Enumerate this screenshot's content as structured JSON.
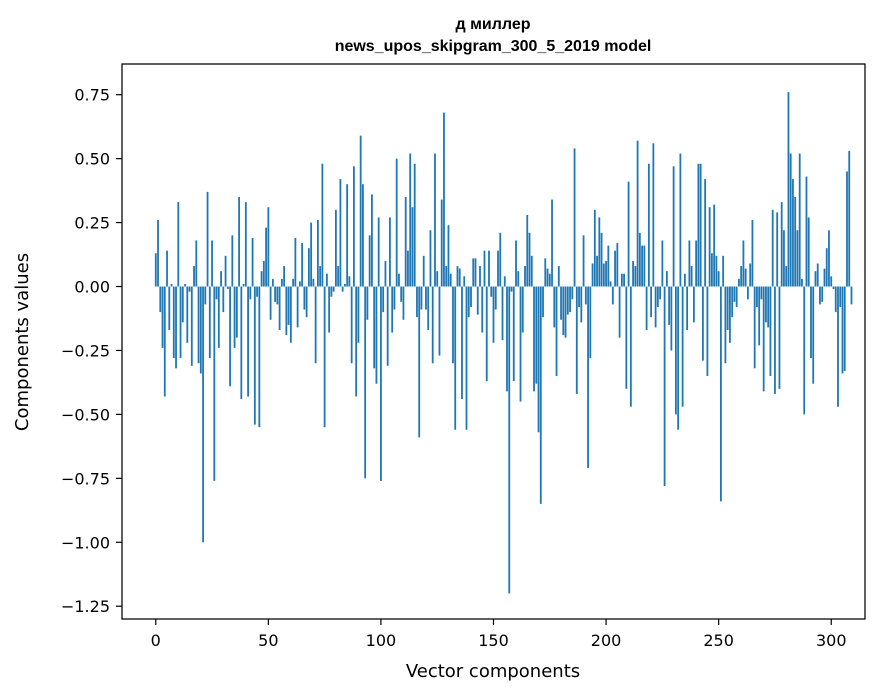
{
  "chart_data": {
    "type": "bar",
    "title": "д миллер",
    "subtitle": "news_upos_skipgram_300_5_2019 model",
    "xlabel": "Vector components",
    "ylabel": "Components values",
    "xlim": [
      -15,
      315
    ],
    "ylim": [
      -1.3,
      0.87
    ],
    "xticks": [
      0,
      50,
      100,
      150,
      200,
      250,
      300
    ],
    "yticks": [
      -1.25,
      -1.0,
      -0.75,
      -0.5,
      -0.25,
      0.0,
      0.25,
      0.5,
      0.75
    ],
    "ytick_labels": [
      "−1.25",
      "−1.00",
      "−0.75",
      "−0.50",
      "−0.25",
      "0.00",
      "0.25",
      "0.50",
      "0.75"
    ],
    "bar_color": "#1f77b4",
    "grid": false,
    "values": [
      0.13,
      0.26,
      -0.1,
      -0.24,
      -0.43,
      0.14,
      -0.17,
      0.01,
      -0.28,
      -0.32,
      0.33,
      -0.28,
      -0.14,
      0.01,
      -0.22,
      -0.02,
      -0.31,
      0.08,
      0.18,
      -0.3,
      -0.34,
      -1.0,
      -0.07,
      0.37,
      -0.28,
      0.18,
      -0.76,
      -0.05,
      -0.24,
      0.06,
      -0.1,
      0.12,
      -0.01,
      -0.39,
      0.2,
      -0.24,
      -0.2,
      0.35,
      -0.44,
      0.01,
      0.33,
      -0.43,
      -0.05,
      0.19,
      -0.54,
      -0.04,
      -0.55,
      0.06,
      0.1,
      0.23,
      0.31,
      -0.13,
      0.03,
      -0.06,
      -0.07,
      -0.17,
      0.03,
      0.08,
      -0.19,
      -0.15,
      -0.22,
      0.03,
      0.19,
      -0.16,
      0.02,
      0.17,
      -0.09,
      -0.12,
      0.15,
      0.25,
      0.03,
      -0.3,
      0.26,
      0.08,
      0.48,
      -0.55,
      0.05,
      -0.18,
      -0.04,
      -0.02,
      0.3,
      0.08,
      0.42,
      -0.02,
      0.01,
      0.4,
      0.04,
      -0.3,
      0.47,
      -0.43,
      -0.22,
      0.59,
      0.4,
      -0.75,
      -0.13,
      0.2,
      0.36,
      -0.32,
      -0.38,
      0.27,
      -0.76,
      -0.1,
      0.1,
      -0.31,
      0.27,
      -0.18,
      -0.09,
      0.5,
      0.05,
      -0.06,
      -0.13,
      0.35,
      0.14,
      0.52,
      0.31,
      0.48,
      -0.12,
      -0.59,
      -0.09,
      0.12,
      -0.09,
      -0.17,
      0.22,
      -0.3,
      0.52,
      0.06,
      -0.27,
      0.34,
      0.68,
      0.08,
      0.24,
      0.05,
      -0.3,
      -0.56,
      0.08,
      0.07,
      -0.44,
      0.04,
      -0.56,
      -0.12,
      -0.08,
      0.11,
      0.11,
      -0.11,
      0.08,
      -0.18,
      0.14,
      -0.37,
      0.14,
      -0.04,
      -0.22,
      -0.09,
      0.14,
      0.21,
      -0.21,
      0.04,
      -0.41,
      -1.2,
      -0.02,
      -0.37,
      0.18,
      0.06,
      -0.45,
      -0.18,
      0.08,
      0.28,
      0.21,
      0.12,
      -0.41,
      -0.38,
      -0.57,
      -0.85,
      -0.12,
      0.11,
      0.07,
      0.05,
      0.34,
      -0.16,
      -0.35,
      0.08,
      -0.13,
      -0.19,
      -0.2,
      -0.11,
      -0.1,
      -0.05,
      0.54,
      -0.42,
      -0.08,
      -0.14,
      0.2,
      -0.07,
      -0.71,
      -0.28,
      0.09,
      0.3,
      0.12,
      0.27,
      0.21,
      0.09,
      0.1,
      0.16,
      0.02,
      -0.07,
      0.14,
      0.17,
      -0.2,
      0.05,
      0.05,
      -0.4,
      0.41,
      -0.47,
      0.1,
      0.08,
      0.57,
      0.21,
      0.16,
      0.16,
      -0.17,
      0.48,
      -0.12,
      0.56,
      -0.16,
      -0.08,
      -0.05,
      0.18,
      -0.78,
      0.06,
      -0.15,
      -0.25,
      0.47,
      -0.5,
      -0.56,
      0.52,
      -0.47,
      0.05,
      -0.17,
      0.18,
      0.08,
      -0.14,
      0.18,
      0.48,
      0.48,
      -0.29,
      0.42,
      -0.35,
      0.31,
      0.13,
      0.32,
      0.12,
      0.06,
      -0.84,
      0.12,
      -0.3,
      -0.17,
      -0.22,
      -0.12,
      -0.06,
      -0.08,
      0.03,
      0.08,
      0.18,
      0.07,
      -0.05,
      0.09,
      0.26,
      -0.32,
      -0.08,
      -0.23,
      -0.05,
      -0.41,
      -0.14,
      -0.16,
      -0.35,
      0.3,
      -0.42,
      0.29,
      -0.4,
      0.33,
      0.22,
      0.08,
      0.76,
      0.52,
      0.42,
      0.35,
      0.22,
      0.52,
      0.03,
      -0.5,
      0.43,
      0.27,
      -0.28,
      -0.38,
      0.06,
      0.09,
      -0.07,
      -0.06,
      0.07,
      0.15,
      0.22,
      0.04,
      -0.01,
      -0.1,
      -0.47,
      -0.08,
      -0.34,
      -0.33,
      0.45,
      0.53,
      -0.07
    ]
  }
}
